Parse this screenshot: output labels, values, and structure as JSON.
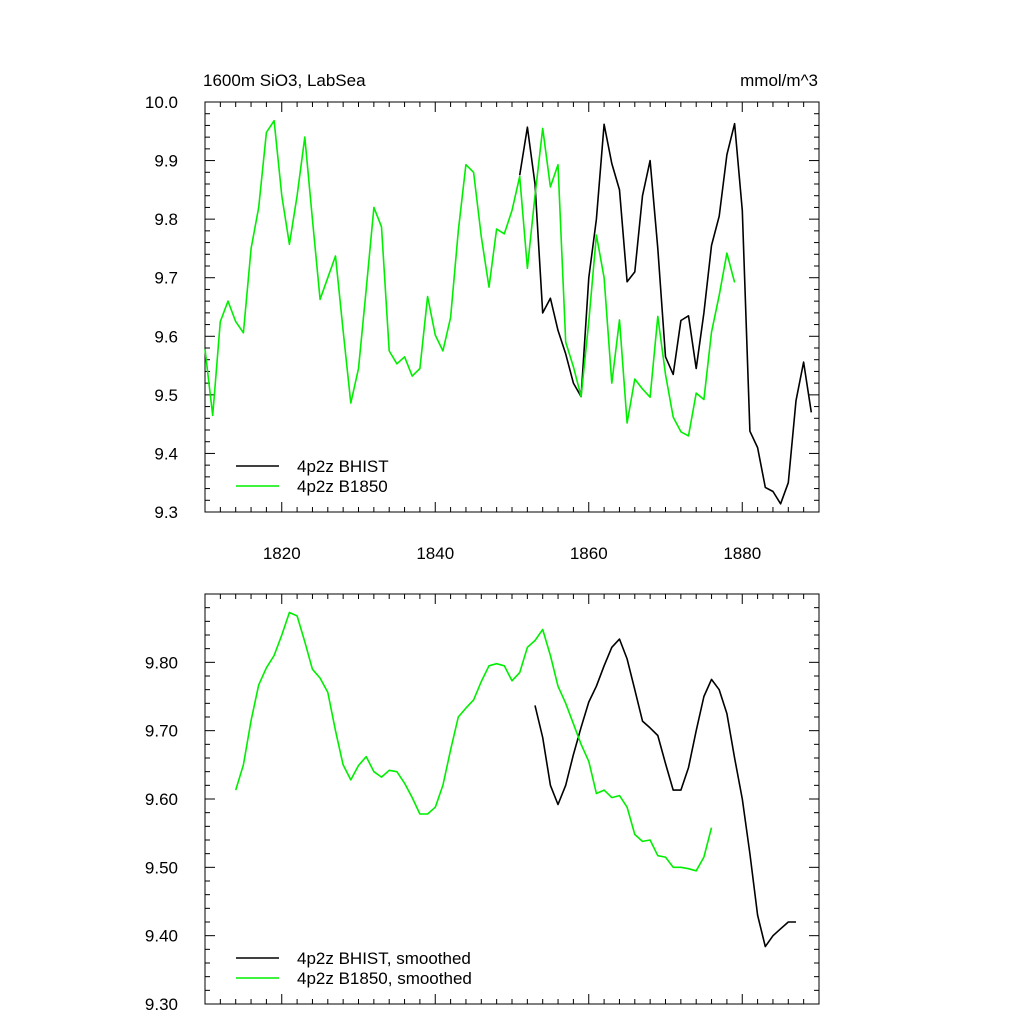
{
  "colors": {
    "bhist": "#000000",
    "b1850": "#00ee00"
  },
  "chart_data": [
    {
      "type": "line",
      "title": "1600m SiO3, LabSea",
      "units": "mmol/m^3",
      "xlabel": "",
      "ylabel": "",
      "xlim": [
        1810,
        1890
      ],
      "ylim": [
        9.3,
        10.0
      ],
      "xticks": [
        1820,
        1840,
        1860,
        1880
      ],
      "xtick_labels": [
        "1820",
        "1840",
        "1860",
        "1880"
      ],
      "yticks": [
        9.3,
        9.4,
        9.5,
        9.6,
        9.7,
        9.8,
        9.9,
        10.0
      ],
      "ytick_labels": [
        "9.3",
        "9.4",
        "9.5",
        "9.6",
        "9.7",
        "9.8",
        "9.9",
        "10.0"
      ],
      "grid": false,
      "legend": "bottom-left",
      "series": [
        {
          "name": "4p2z BHIST",
          "color": "#000000",
          "x": [
            1851,
            1852,
            1853,
            1854,
            1855,
            1856,
            1857,
            1858,
            1859,
            1860,
            1861,
            1862,
            1863,
            1864,
            1865,
            1866,
            1867,
            1868,
            1869,
            1870,
            1871,
            1872,
            1873,
            1874,
            1875,
            1876,
            1877,
            1878,
            1879,
            1880,
            1881,
            1882,
            1883,
            1884,
            1885,
            1886,
            1887,
            1888,
            1889
          ],
          "y": [
            9.875,
            9.957,
            9.86,
            9.64,
            9.665,
            9.61,
            9.57,
            9.52,
            9.497,
            9.7,
            9.8,
            9.962,
            9.895,
            9.85,
            9.693,
            9.71,
            9.84,
            9.9,
            9.75,
            9.565,
            9.535,
            9.627,
            9.635,
            9.545,
            9.64,
            9.755,
            9.805,
            9.91,
            9.963,
            9.815,
            9.438,
            9.41,
            9.342,
            9.335,
            9.314,
            9.35,
            9.49,
            9.556,
            9.47
          ]
        },
        {
          "name": "4p2z B1850",
          "color": "#00ee00",
          "x": [
            1810,
            1811,
            1812,
            1813,
            1814,
            1815,
            1816,
            1817,
            1818,
            1819,
            1820,
            1821,
            1822,
            1823,
            1824,
            1825,
            1826,
            1827,
            1828,
            1829,
            1830,
            1831,
            1832,
            1833,
            1834,
            1835,
            1836,
            1837,
            1838,
            1839,
            1840,
            1841,
            1842,
            1843,
            1844,
            1845,
            1846,
            1847,
            1848,
            1849,
            1850,
            1851,
            1852,
            1853,
            1854,
            1855,
            1856,
            1857,
            1858,
            1859,
            1860,
            1861,
            1862,
            1863,
            1864,
            1865,
            1866,
            1867,
            1868,
            1869,
            1870,
            1871,
            1872,
            1873,
            1874,
            1875,
            1876,
            1877,
            1878,
            1879
          ],
          "y": [
            9.578,
            9.465,
            9.625,
            9.66,
            9.625,
            9.606,
            9.75,
            9.82,
            9.948,
            9.968,
            9.84,
            9.757,
            9.84,
            9.94,
            9.8,
            9.663,
            9.7,
            9.737,
            9.61,
            9.486,
            9.545,
            9.68,
            9.82,
            9.787,
            9.575,
            9.553,
            9.565,
            9.532,
            9.545,
            9.668,
            9.602,
            9.575,
            9.632,
            9.78,
            9.893,
            9.88,
            9.77,
            9.684,
            9.783,
            9.775,
            9.815,
            9.873,
            9.716,
            9.84,
            9.955,
            9.855,
            9.893,
            9.59,
            9.548,
            9.497,
            9.625,
            9.773,
            9.7,
            9.52,
            9.628,
            9.452,
            9.527,
            9.51,
            9.496,
            9.634,
            9.535,
            9.462,
            9.437,
            9.43,
            9.503,
            9.492,
            9.607,
            9.67,
            9.742,
            9.692
          ]
        }
      ]
    },
    {
      "type": "line",
      "title": "",
      "xlabel": "",
      "ylabel": "",
      "xlim": [
        1810,
        1890
      ],
      "ylim": [
        9.3,
        9.9
      ],
      "xticks": [
        1820,
        1840,
        1860,
        1880
      ],
      "xtick_labels": [],
      "yticks": [
        9.3,
        9.4,
        9.5,
        9.6,
        9.7,
        9.8
      ],
      "ytick_labels": [
        "9.30",
        "9.40",
        "9.50",
        "9.60",
        "9.70",
        "9.80"
      ],
      "grid": false,
      "legend": "bottom-left",
      "series": [
        {
          "name": "4p2z BHIST, smoothed",
          "color": "#000000",
          "x": [
            1853,
            1854,
            1855,
            1856,
            1857,
            1858,
            1859,
            1860,
            1861,
            1862,
            1863,
            1864,
            1865,
            1866,
            1867,
            1868,
            1869,
            1870,
            1871,
            1872,
            1873,
            1874,
            1875,
            1876,
            1877,
            1878,
            1879,
            1880,
            1881,
            1882,
            1883,
            1884,
            1885,
            1886,
            1887
          ],
          "y": [
            9.737,
            9.69,
            9.62,
            9.592,
            9.62,
            9.665,
            9.705,
            9.742,
            9.765,
            9.795,
            9.822,
            9.834,
            9.805,
            9.76,
            9.714,
            9.704,
            9.693,
            9.652,
            9.613,
            9.613,
            9.646,
            9.7,
            9.75,
            9.775,
            9.76,
            9.725,
            9.66,
            9.6,
            9.52,
            9.43,
            9.384,
            9.4,
            9.41,
            9.42,
            9.42
          ]
        },
        {
          "name": "4p2z B1850, smoothed",
          "color": "#00ee00",
          "x": [
            1814,
            1815,
            1816,
            1817,
            1818,
            1819,
            1820,
            1821,
            1822,
            1823,
            1824,
            1825,
            1826,
            1827,
            1828,
            1829,
            1830,
            1831,
            1832,
            1833,
            1834,
            1835,
            1836,
            1837,
            1838,
            1839,
            1840,
            1841,
            1842,
            1843,
            1844,
            1845,
            1846,
            1847,
            1848,
            1849,
            1850,
            1851,
            1852,
            1853,
            1854,
            1855,
            1856,
            1857,
            1858,
            1859,
            1860,
            1861,
            1862,
            1863,
            1864,
            1865,
            1866,
            1867,
            1868,
            1869,
            1870,
            1871,
            1872,
            1873,
            1874,
            1875,
            1876
          ],
          "y": [
            9.613,
            9.65,
            9.715,
            9.767,
            9.792,
            9.81,
            9.84,
            9.873,
            9.868,
            9.83,
            9.79,
            9.777,
            9.756,
            9.7,
            9.65,
            9.628,
            9.649,
            9.662,
            9.64,
            9.632,
            9.642,
            9.64,
            9.623,
            9.602,
            9.578,
            9.578,
            9.588,
            9.62,
            9.672,
            9.72,
            9.733,
            9.745,
            9.772,
            9.795,
            9.798,
            9.795,
            9.773,
            9.785,
            9.822,
            9.832,
            9.848,
            9.81,
            9.765,
            9.74,
            9.71,
            9.68,
            9.655,
            9.608,
            9.613,
            9.602,
            9.605,
            9.588,
            9.548,
            9.538,
            9.54,
            9.517,
            9.515,
            9.5,
            9.5,
            9.498,
            9.495,
            9.515,
            9.558
          ]
        }
      ]
    }
  ]
}
